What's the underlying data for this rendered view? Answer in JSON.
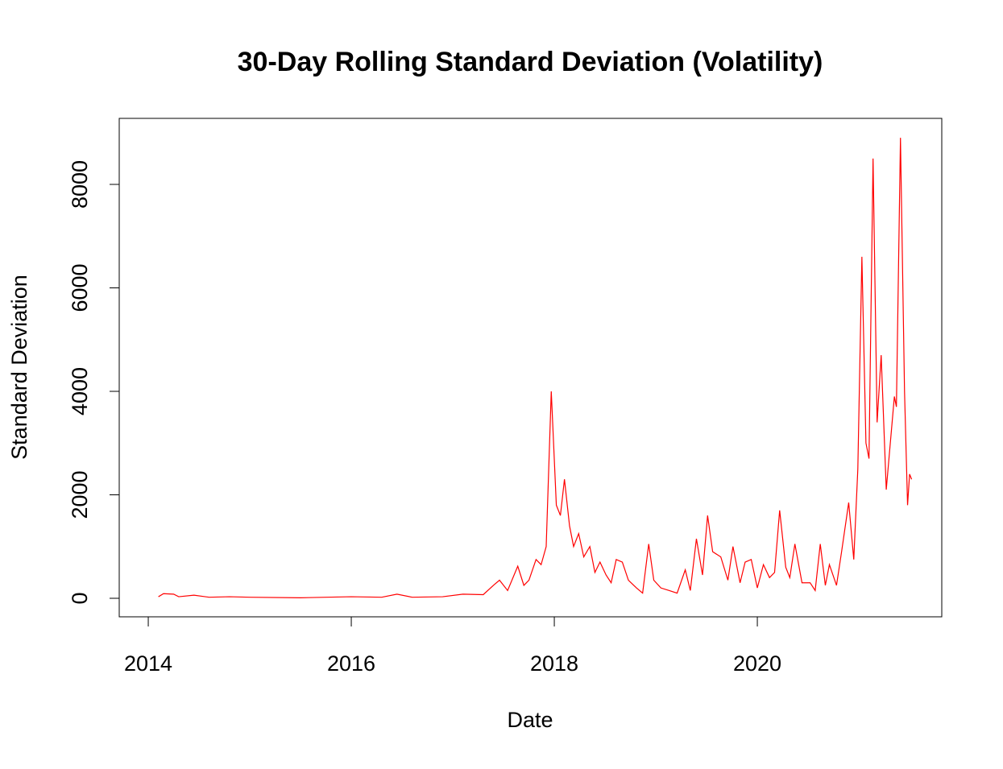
{
  "chart_data": {
    "type": "line",
    "title": "30-Day Rolling Standard Deviation (Volatility)",
    "x_label": "Date",
    "y_label": "Standard Deviation",
    "x": [
      2014.1,
      2014.15,
      2014.25,
      2014.3,
      2014.45,
      2014.6,
      2014.8,
      2015.0,
      2015.5,
      2016.0,
      2016.3,
      2016.45,
      2016.6,
      2016.9,
      2017.1,
      2017.3,
      2017.4,
      2017.46,
      2017.54,
      2017.64,
      2017.7,
      2017.75,
      2017.82,
      2017.87,
      2017.92,
      2017.97,
      2018.02,
      2018.06,
      2018.1,
      2018.15,
      2018.19,
      2018.24,
      2018.29,
      2018.35,
      2018.4,
      2018.45,
      2018.51,
      2018.56,
      2018.61,
      2018.67,
      2018.73,
      2018.81,
      2018.87,
      2018.93,
      2018.98,
      2019.05,
      2019.13,
      2019.21,
      2019.29,
      2019.34,
      2019.4,
      2019.46,
      2019.51,
      2019.56,
      2019.64,
      2019.71,
      2019.76,
      2019.83,
      2019.88,
      2019.94,
      2020.0,
      2020.06,
      2020.12,
      2020.17,
      2020.22,
      2020.28,
      2020.32,
      2020.37,
      2020.44,
      2020.52,
      2020.57,
      2020.62,
      2020.67,
      2020.71,
      2020.78,
      2020.83,
      2020.9,
      2020.95,
      2020.99,
      2021.03,
      2021.07,
      2021.1,
      2021.14,
      2021.18,
      2021.22,
      2021.27,
      2021.31,
      2021.35,
      2021.37,
      2021.41,
      2021.45,
      2021.48,
      2021.5,
      2021.52
    ],
    "series": [
      {
        "name": "Standard Deviation",
        "color": "#ff0000",
        "values": [
          30,
          90,
          80,
          30,
          60,
          20,
          30,
          20,
          10,
          30,
          20,
          80,
          20,
          30,
          80,
          70,
          250,
          350,
          150,
          620,
          250,
          350,
          750,
          650,
          1000,
          4000,
          1800,
          1600,
          2300,
          1400,
          1000,
          1250,
          800,
          1000,
          500,
          700,
          450,
          300,
          750,
          700,
          350,
          200,
          100,
          1050,
          350,
          200,
          150,
          100,
          550,
          150,
          1150,
          450,
          1600,
          900,
          800,
          350,
          1000,
          300,
          700,
          750,
          200,
          650,
          400,
          500,
          1700,
          600,
          400,
          1050,
          300,
          300,
          150,
          1050,
          250,
          650,
          250,
          900,
          1850,
          750,
          2500,
          6600,
          3000,
          2700,
          8500,
          3400,
          4700,
          2100,
          3000,
          3900,
          3700,
          8900,
          4000,
          1800,
          2400,
          2300
        ]
      }
    ],
    "xlim": [
      2013.714,
      2021.817
    ],
    "xticks": [
      2014,
      2016,
      2018,
      2020
    ],
    "ylim": [
      -358,
      9276
    ],
    "yticks": [
      0,
      2000,
      4000,
      6000,
      8000
    ]
  }
}
